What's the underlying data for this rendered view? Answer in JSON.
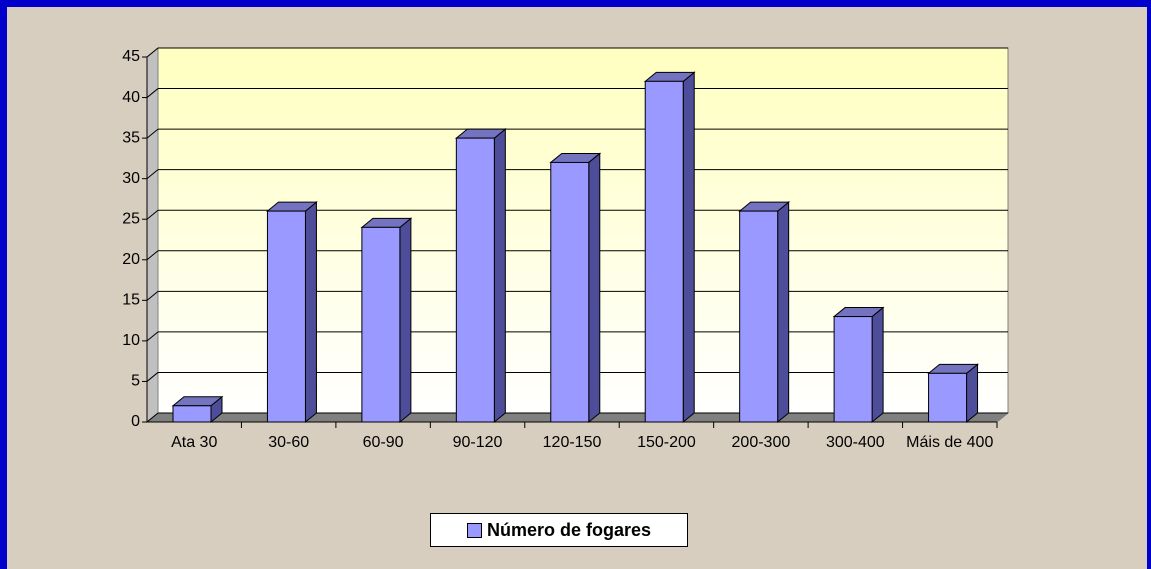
{
  "chart_data": {
    "type": "bar3d",
    "categories": [
      "Ata 30",
      "30-60",
      "60-90",
      "90-120",
      "120-150",
      "150-200",
      "200-300",
      "300-400",
      "Máis de 400"
    ],
    "series": [
      {
        "name": "Número de fogares",
        "color": "#9999ff",
        "values": [
          2,
          26,
          24,
          35,
          32,
          42,
          26,
          13,
          6
        ]
      }
    ],
    "ylim": [
      0,
      45
    ],
    "yticks": [
      0,
      5,
      10,
      15,
      20,
      25,
      30,
      35,
      40,
      45
    ],
    "grid": true,
    "legend": "bottom"
  }
}
